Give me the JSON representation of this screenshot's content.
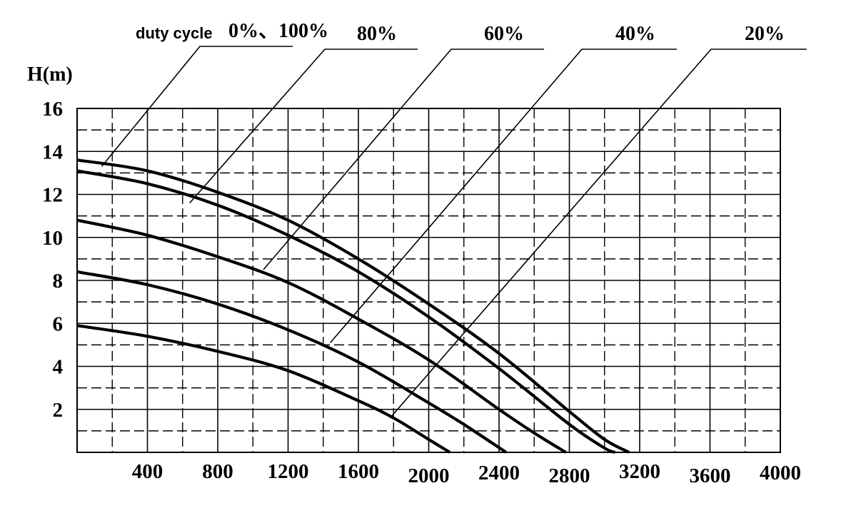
{
  "chart_data": {
    "type": "line",
    "ylabel": "H(m)",
    "xlabel": "",
    "xlim": [
      0,
      4000
    ],
    "ylim": [
      0,
      16
    ],
    "x_ticks": [
      "400",
      "800",
      "1200",
      "1600",
      "2000",
      "2400",
      "2800",
      "3200",
      "3600",
      "4000"
    ],
    "y_ticks": [
      "16",
      "14",
      "12",
      "10",
      "8",
      "6",
      "4",
      "2"
    ],
    "grid": "dashed",
    "label_prefix": "duty cycle",
    "series": [
      {
        "name": "0%、100%",
        "x": [
          0,
          400,
          800,
          1200,
          1600,
          2000,
          2400,
          2800,
          3000,
          3140
        ],
        "y": [
          13.6,
          13.1,
          12.1,
          10.8,
          9.0,
          6.9,
          4.6,
          1.9,
          0.6,
          0
        ]
      },
      {
        "name": "80%",
        "x": [
          0,
          400,
          800,
          1200,
          1600,
          2000,
          2400,
          2800,
          3000,
          3060
        ],
        "y": [
          13.1,
          12.5,
          11.5,
          10.1,
          8.4,
          6.3,
          3.9,
          1.3,
          0.2,
          0
        ]
      },
      {
        "name": "60%",
        "x": [
          0,
          400,
          800,
          1200,
          1600,
          2000,
          2400,
          2600,
          2780
        ],
        "y": [
          10.8,
          10.1,
          9.1,
          7.9,
          6.2,
          4.3,
          2.0,
          0.9,
          0
        ]
      },
      {
        "name": "40%",
        "x": [
          0,
          400,
          800,
          1200,
          1600,
          2000,
          2200,
          2440
        ],
        "y": [
          8.4,
          7.8,
          6.9,
          5.7,
          4.2,
          2.3,
          1.3,
          0
        ]
      },
      {
        "name": "20%",
        "x": [
          0,
          400,
          800,
          1200,
          1600,
          1800,
          2000,
          2120
        ],
        "y": [
          5.9,
          5.4,
          4.7,
          3.8,
          2.4,
          1.6,
          0.6,
          0
        ]
      }
    ],
    "labels": [
      {
        "series": 0,
        "anchor_x": 140,
        "anchor_y": 13.3
      },
      {
        "series": 1,
        "anchor_x": 640,
        "anchor_y": 11.6
      },
      {
        "series": 2,
        "anchor_x": 1060,
        "anchor_y": 8.5
      },
      {
        "series": 3,
        "anchor_x": 1440,
        "anchor_y": 5.1
      },
      {
        "series": 4,
        "anchor_x": 1780,
        "anchor_y": 1.6
      }
    ]
  }
}
